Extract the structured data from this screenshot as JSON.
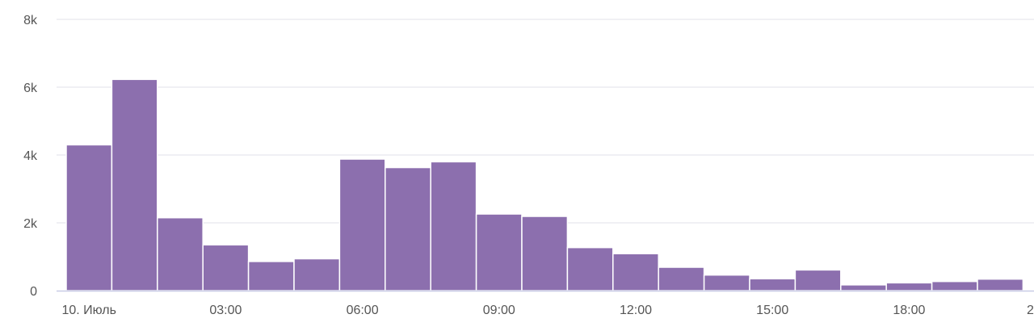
{
  "chart_data": {
    "type": "bar",
    "title": "",
    "xlabel": "",
    "ylabel": "",
    "ylim": [
      0,
      8000
    ],
    "grid": true,
    "colors": {
      "bar": "#8c6fae",
      "grid": "#e0e0e8",
      "axis": "#c8cbe6",
      "text": "#555555"
    },
    "y_ticks": [
      {
        "value": 0,
        "label": "0"
      },
      {
        "value": 2000,
        "label": "2k"
      },
      {
        "value": 4000,
        "label": "4k"
      },
      {
        "value": 6000,
        "label": "6k"
      },
      {
        "value": 8000,
        "label": "8k"
      }
    ],
    "x_ticks": [
      {
        "hour": 0,
        "label": "10. Июль"
      },
      {
        "hour": 3,
        "label": "03:00"
      },
      {
        "hour": 6,
        "label": "06:00"
      },
      {
        "hour": 9,
        "label": "09:00"
      },
      {
        "hour": 12,
        "label": "12:00"
      },
      {
        "hour": 15,
        "label": "15:00"
      },
      {
        "hour": 18,
        "label": "18:00"
      },
      {
        "hour": 21,
        "label": "2"
      }
    ],
    "x_start_hour": -0.5,
    "bar_hours": [
      0,
      1,
      2,
      3,
      4,
      5,
      6,
      7,
      8,
      9,
      10,
      11,
      12,
      13,
      14,
      15,
      16,
      17,
      18,
      19,
      20
    ],
    "values": [
      4300,
      6230,
      2150,
      1350,
      860,
      940,
      3880,
      3630,
      3800,
      2260,
      2190,
      1270,
      1090,
      690,
      460,
      350,
      610,
      170,
      230,
      270,
      340
    ]
  }
}
